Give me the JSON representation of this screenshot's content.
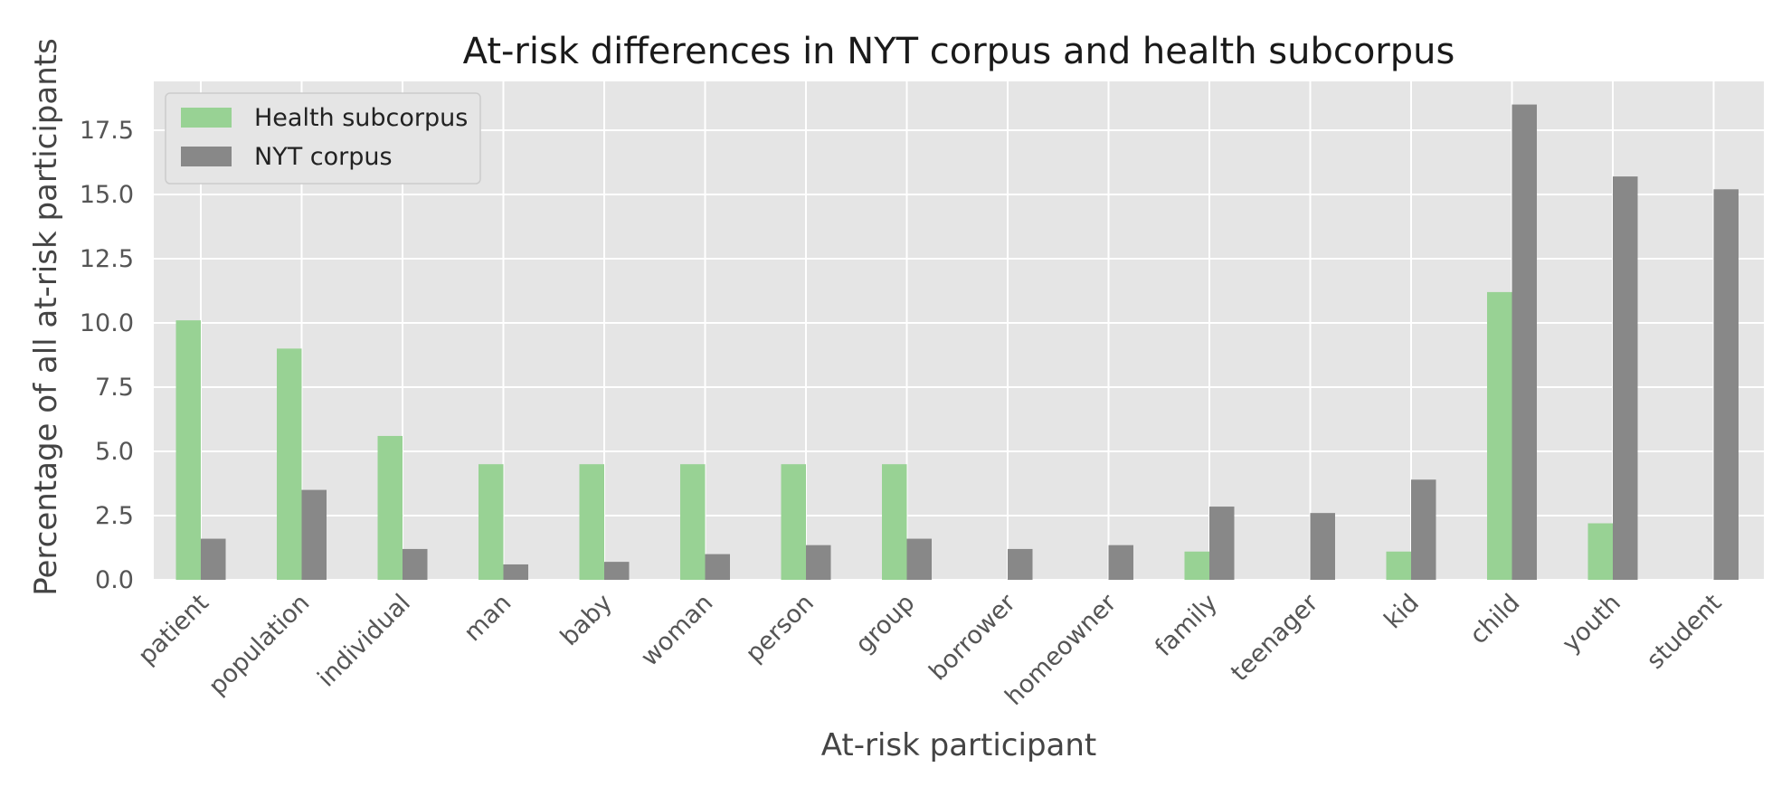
{
  "chart_data": {
    "type": "bar",
    "title": "At-risk differences in NYT corpus and health subcorpus",
    "xlabel": "At-risk participant",
    "ylabel": "Percentage of all at-risk participants",
    "categories": [
      "patient",
      "population",
      "individual",
      "man",
      "baby",
      "woman",
      "person",
      "group",
      "borrower",
      "homeowner",
      "family",
      "teenager",
      "kid",
      "child",
      "youth",
      "student"
    ],
    "series": [
      {
        "name": "Health subcorpus",
        "color": "#98d294",
        "values": [
          10.1,
          9.0,
          5.6,
          4.5,
          4.5,
          4.5,
          4.5,
          4.5,
          0.0,
          0.0,
          1.1,
          0.0,
          1.1,
          11.2,
          2.2,
          0.0
        ]
      },
      {
        "name": "NYT corpus",
        "color": "#888888",
        "values": [
          1.6,
          3.5,
          1.2,
          0.6,
          0.7,
          1.0,
          1.35,
          1.6,
          1.2,
          1.35,
          2.85,
          2.6,
          3.9,
          18.5,
          15.7,
          15.2
        ]
      }
    ],
    "ylim": [
      0,
      19.4
    ],
    "yticks": [
      "0.0",
      "2.5",
      "5.0",
      "7.5",
      "10.0",
      "12.5",
      "15.0",
      "17.5"
    ],
    "grid": true,
    "legend_position": "top-left",
    "background_color": "#e5e5e5"
  }
}
